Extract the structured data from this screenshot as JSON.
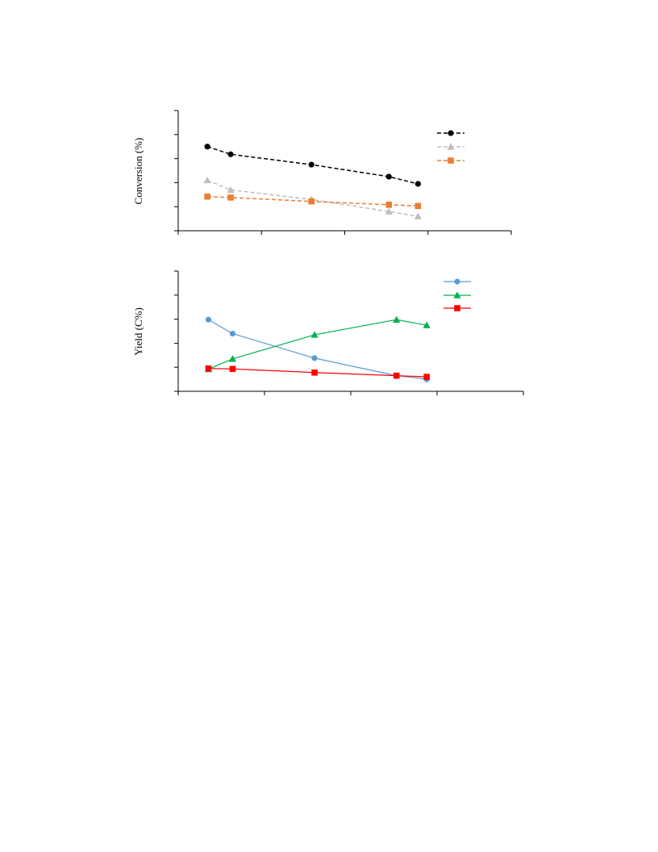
{
  "chart_data": [
    {
      "type": "line",
      "title": "",
      "xlabel": "",
      "ylabel": "Conversion (%)",
      "xlim": [
        0,
        4
      ],
      "ylim": [
        0,
        5
      ],
      "legend": "top-right",
      "grid": false,
      "series": [
        {
          "color": "#000000",
          "marker": "circle",
          "dash": true,
          "x": [
            0.35,
            0.63,
            1.6,
            2.53,
            2.88
          ],
          "y": [
            3.5,
            3.18,
            2.75,
            2.25,
            1.95
          ]
        },
        {
          "color": "#bfbfbf",
          "marker": "triangle",
          "dash": true,
          "x": [
            0.35,
            0.63,
            1.6,
            2.53,
            2.88
          ],
          "y": [
            2.1,
            1.7,
            1.3,
            0.8,
            0.6
          ]
        },
        {
          "color": "#ed7d31",
          "marker": "square",
          "dash": true,
          "x": [
            0.35,
            0.63,
            1.6,
            2.53,
            2.88
          ],
          "y": [
            1.42,
            1.38,
            1.22,
            1.08,
            1.03
          ]
        }
      ]
    },
    {
      "type": "line",
      "title": "",
      "xlabel": "",
      "ylabel": "Yield (C%)",
      "xlim": [
        0,
        4
      ],
      "ylim": [
        0,
        5
      ],
      "legend": "top-right",
      "grid": false,
      "series": [
        {
          "color": "#5b9bd5",
          "marker": "circle",
          "dash": false,
          "x": [
            0.35,
            0.63,
            1.58,
            2.53,
            2.88
          ],
          "y": [
            2.98,
            2.4,
            1.38,
            0.65,
            0.5
          ]
        },
        {
          "color": "#00b050",
          "marker": "triangle",
          "dash": false,
          "x": [
            0.35,
            0.63,
            1.58,
            2.53,
            2.88
          ],
          "y": [
            0.92,
            1.35,
            2.35,
            2.98,
            2.75
          ]
        },
        {
          "color": "#ff0000",
          "marker": "square",
          "dash": false,
          "x": [
            0.35,
            0.63,
            1.58,
            2.53,
            2.88
          ],
          "y": [
            0.95,
            0.93,
            0.78,
            0.65,
            0.6
          ]
        }
      ]
    }
  ]
}
